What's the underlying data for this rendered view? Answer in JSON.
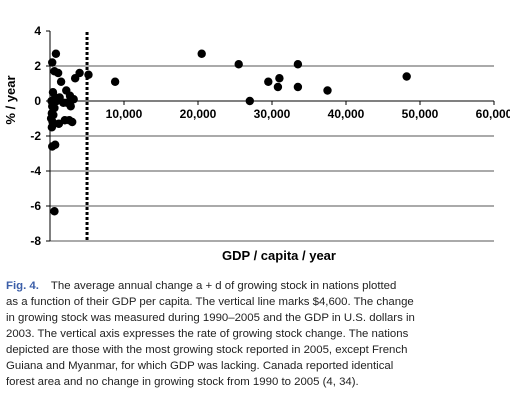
{
  "chart_data": {
    "type": "scatter",
    "title": "",
    "xlabel": "GDP / capita / year",
    "ylabel": "% / year",
    "xlim": [
      0,
      60000
    ],
    "ylim": [
      -8,
      4
    ],
    "x_ticks": [
      0,
      10000,
      20000,
      30000,
      40000,
      50000,
      60000
    ],
    "x_tick_labels": [
      "0",
      "10,000",
      "20,000",
      "30,000",
      "40,000",
      "50,000",
      "60,000"
    ],
    "y_ticks": [
      4,
      2,
      0,
      -2,
      -4,
      -6,
      -8
    ],
    "y_tick_labels": [
      "4",
      "2",
      "0",
      "-2",
      "-4",
      "-6",
      "-8"
    ],
    "grid": "horizontal gridlines at 2, -2, -4, -6, -8",
    "vertical_line": {
      "x": 4600,
      "style": "dotted"
    },
    "points": [
      {
        "x": 300,
        "y": 2.2
      },
      {
        "x": 800,
        "y": 2.7
      },
      {
        "x": 600,
        "y": 1.7
      },
      {
        "x": 1100,
        "y": 1.6
      },
      {
        "x": 1500,
        "y": 1.1
      },
      {
        "x": 400,
        "y": 0.5
      },
      {
        "x": 700,
        "y": 0.2
      },
      {
        "x": 200,
        "y": 0.0
      },
      {
        "x": 500,
        "y": -0.1
      },
      {
        "x": 900,
        "y": 0.0
      },
      {
        "x": 300,
        "y": -0.3
      },
      {
        "x": 600,
        "y": -0.4
      },
      {
        "x": 250,
        "y": -0.7
      },
      {
        "x": 450,
        "y": -0.8
      },
      {
        "x": 150,
        "y": -1.0
      },
      {
        "x": 350,
        "y": -1.2
      },
      {
        "x": 550,
        "y": -1.3
      },
      {
        "x": 250,
        "y": -1.5
      },
      {
        "x": 1200,
        "y": -1.3
      },
      {
        "x": 2000,
        "y": -1.1
      },
      {
        "x": 2600,
        "y": -1.1
      },
      {
        "x": 3000,
        "y": -1.2
      },
      {
        "x": 1800,
        "y": -0.1
      },
      {
        "x": 2300,
        "y": -0.1
      },
      {
        "x": 2800,
        "y": -0.3
      },
      {
        "x": 2200,
        "y": 0.6
      },
      {
        "x": 2700,
        "y": 0.3
      },
      {
        "x": 3200,
        "y": 0.1
      },
      {
        "x": 3400,
        "y": 1.3
      },
      {
        "x": 4000,
        "y": 1.6
      },
      {
        "x": 5200,
        "y": 1.5
      },
      {
        "x": 1300,
        "y": 0.2
      },
      {
        "x": 300,
        "y": -2.6
      },
      {
        "x": 700,
        "y": -2.5
      },
      {
        "x": 600,
        "y": -6.3
      },
      {
        "x": 8800,
        "y": 1.1
      },
      {
        "x": 20500,
        "y": 2.7
      },
      {
        "x": 25500,
        "y": 2.1
      },
      {
        "x": 27000,
        "y": 0.0
      },
      {
        "x": 29500,
        "y": 1.1
      },
      {
        "x": 31000,
        "y": 1.3
      },
      {
        "x": 30800,
        "y": 0.8
      },
      {
        "x": 33500,
        "y": 2.1
      },
      {
        "x": 33500,
        "y": 0.8
      },
      {
        "x": 37500,
        "y": 0.6
      },
      {
        "x": 48200,
        "y": 1.4
      }
    ]
  },
  "caption": {
    "label": "Fig. 4.",
    "lines": [
      "The average annual change a + d of growing stock in nations plotted",
      "as a function of their GDP per capita. The vertical line marks $4,600. The change",
      "in growing stock was measured during 1990–2005 and the GDP in U.S. dollars in",
      "2003. The vertical axis expresses the rate of growing stock change. The nations",
      "depicted are those with the most growing stock reported in 2005, except French",
      "Guiana and Myanmar, for which GDP was lacking. Canada reported identical",
      "forest area and no change in growing stock from 1990 to 2005 (4, 34)."
    ]
  }
}
